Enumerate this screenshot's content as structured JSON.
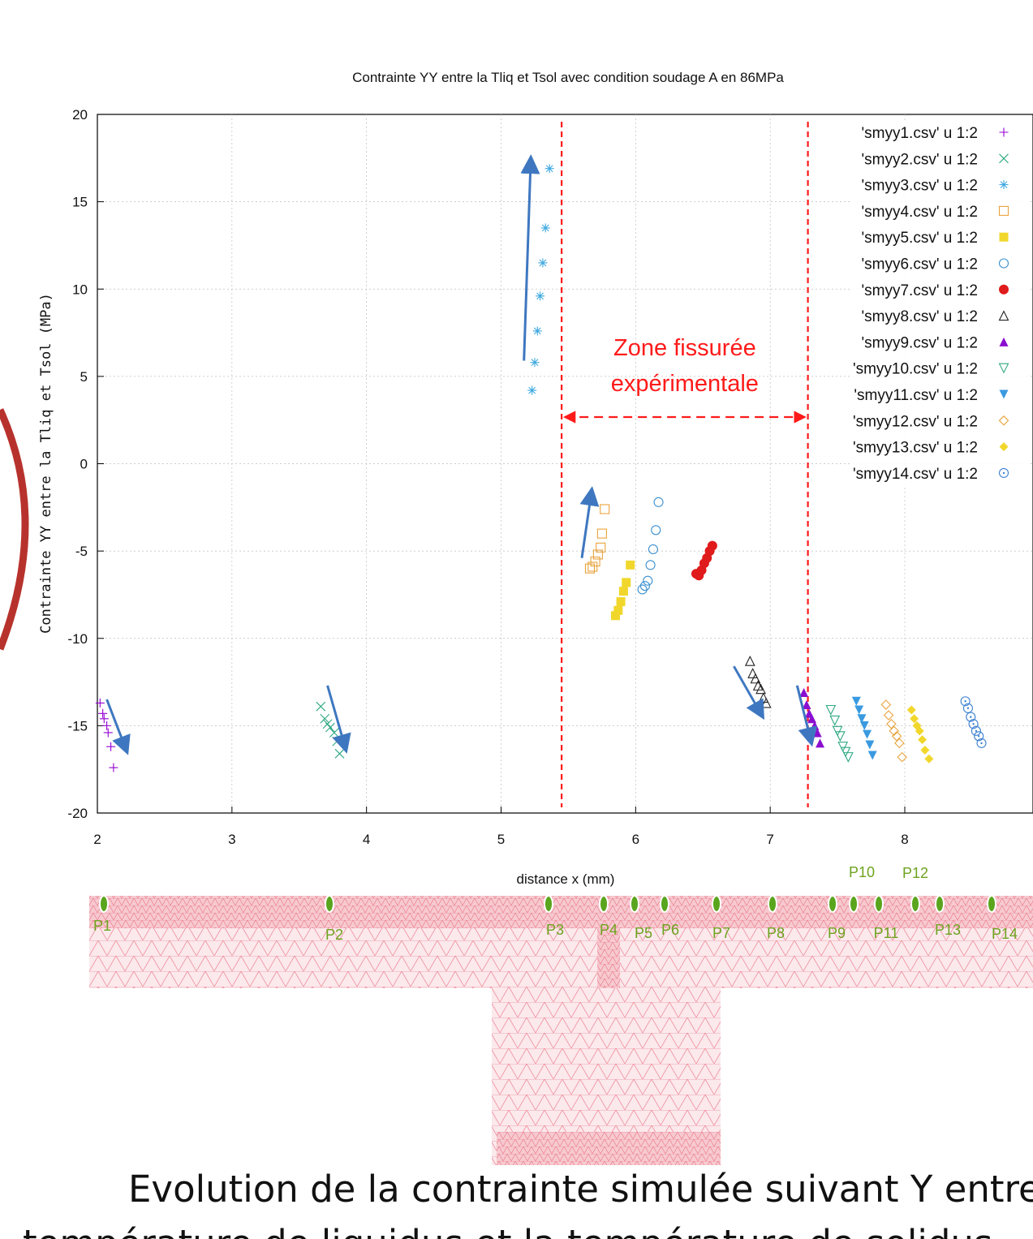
{
  "chart_data": {
    "type": "scatter",
    "title": "Contrainte YY entre la Tliq et Tsol avec condition soudage A en 86MPa",
    "xlabel": "distance x (mm)",
    "ylabel": "Contrainte YY entre la Tliq et Tsol (MPa)",
    "xlim": [
      2,
      8.95
    ],
    "ylim": [
      -20,
      20
    ],
    "xticks": [
      "2",
      "3",
      "4",
      "5",
      "6",
      "7",
      "8"
    ],
    "yticks": [
      "20",
      "15",
      "10",
      "5",
      "0",
      "-5",
      "-10",
      "-15",
      "-20"
    ],
    "grid": true,
    "legend_position": "top-right",
    "series": [
      {
        "name": "'smyy1.csv' u 1:2",
        "marker": "plus",
        "color": "#9400d3",
        "points": [
          [
            2.02,
            -13.7
          ],
          [
            2.04,
            -14.3
          ],
          [
            2.05,
            -14.6
          ],
          [
            2.07,
            -15.0
          ],
          [
            2.08,
            -15.4
          ],
          [
            2.1,
            -16.2
          ],
          [
            2.12,
            -17.4
          ]
        ]
      },
      {
        "name": "'smyy2.csv' u 1:2",
        "marker": "cross",
        "color": "#2fa882",
        "points": [
          [
            3.66,
            -13.9
          ],
          [
            3.69,
            -14.6
          ],
          [
            3.71,
            -14.9
          ],
          [
            3.73,
            -15.1
          ],
          [
            3.76,
            -15.4
          ],
          [
            3.78,
            -15.9
          ],
          [
            3.8,
            -16.6
          ]
        ]
      },
      {
        "name": "'smyy3.csv' u 1:2",
        "marker": "star",
        "color": "#3fa9e0",
        "points": [
          [
            5.23,
            4.2
          ],
          [
            5.25,
            5.8
          ],
          [
            5.27,
            7.6
          ],
          [
            5.29,
            9.6
          ],
          [
            5.31,
            11.5
          ],
          [
            5.33,
            13.5
          ],
          [
            5.36,
            16.9
          ]
        ]
      },
      {
        "name": "'smyy4.csv' u 1:2",
        "marker": "open-square",
        "color": "#e8a33c",
        "points": [
          [
            5.66,
            -6.0
          ],
          [
            5.68,
            -5.9
          ],
          [
            5.7,
            -5.6
          ],
          [
            5.72,
            -5.2
          ],
          [
            5.74,
            -4.8
          ],
          [
            5.75,
            -4.0
          ],
          [
            5.77,
            -2.6
          ]
        ]
      },
      {
        "name": "'smyy5.csv' u 1:2",
        "marker": "filled-square",
        "color": "#f1d72c",
        "points": [
          [
            5.85,
            -8.7
          ],
          [
            5.87,
            -8.4
          ],
          [
            5.89,
            -7.9
          ],
          [
            5.91,
            -7.3
          ],
          [
            5.93,
            -6.8
          ],
          [
            5.96,
            -5.8
          ]
        ]
      },
      {
        "name": "'smyy6.csv' u 1:2",
        "marker": "open-circle",
        "color": "#3a8fd0",
        "points": [
          [
            6.05,
            -7.2
          ],
          [
            6.07,
            -7.0
          ],
          [
            6.09,
            -6.7
          ],
          [
            6.11,
            -5.8
          ],
          [
            6.13,
            -4.9
          ],
          [
            6.15,
            -3.8
          ],
          [
            6.17,
            -2.2
          ]
        ]
      },
      {
        "name": "'smyy7.csv' u 1:2",
        "marker": "filled-circle",
        "color": "#e01b1b",
        "points": [
          [
            6.45,
            -6.3
          ],
          [
            6.47,
            -6.4
          ],
          [
            6.49,
            -6.1
          ],
          [
            6.51,
            -5.7
          ],
          [
            6.53,
            -5.4
          ],
          [
            6.55,
            -5.0
          ],
          [
            6.57,
            -4.7
          ]
        ]
      },
      {
        "name": "'smyy8.csv' u 1:2",
        "marker": "open-triangle",
        "color": "#222222",
        "points": [
          [
            6.85,
            -11.3
          ],
          [
            6.87,
            -12.0
          ],
          [
            6.89,
            -12.3
          ],
          [
            6.91,
            -12.7
          ],
          [
            6.93,
            -12.9
          ],
          [
            6.95,
            -13.4
          ],
          [
            6.97,
            -13.7
          ]
        ]
      },
      {
        "name": "'smyy9.csv' u 1:2",
        "marker": "filled-triangle",
        "color": "#8a0fd0",
        "points": [
          [
            7.25,
            -13.1
          ],
          [
            7.27,
            -13.8
          ],
          [
            7.29,
            -14.3
          ],
          [
            7.31,
            -14.6
          ],
          [
            7.33,
            -15.0
          ],
          [
            7.35,
            -15.4
          ],
          [
            7.37,
            -16.0
          ]
        ]
      },
      {
        "name": "'smyy10.csv' u 1:2",
        "marker": "open-down-triangle",
        "color": "#2fa882",
        "points": [
          [
            7.45,
            -14.1
          ],
          [
            7.48,
            -14.7
          ],
          [
            7.5,
            -15.3
          ],
          [
            7.52,
            -15.6
          ],
          [
            7.54,
            -16.2
          ],
          [
            7.56,
            -16.5
          ],
          [
            7.58,
            -16.8
          ]
        ]
      },
      {
        "name": "'smyy11.csv' u 1:2",
        "marker": "filled-down-triangle",
        "color": "#3a9ae0",
        "points": [
          [
            7.64,
            -13.6
          ],
          [
            7.66,
            -14.1
          ],
          [
            7.68,
            -14.6
          ],
          [
            7.7,
            -15.0
          ],
          [
            7.72,
            -15.5
          ],
          [
            7.74,
            -16.1
          ],
          [
            7.76,
            -16.7
          ]
        ]
      },
      {
        "name": "'smyy12.csv' u 1:2",
        "marker": "open-diamond",
        "color": "#e8a33c",
        "points": [
          [
            7.86,
            -13.8
          ],
          [
            7.88,
            -14.4
          ],
          [
            7.9,
            -14.9
          ],
          [
            7.92,
            -15.3
          ],
          [
            7.94,
            -15.6
          ],
          [
            7.96,
            -16.0
          ],
          [
            7.98,
            -16.8
          ]
        ]
      },
      {
        "name": "'smyy13.csv' u 1:2",
        "marker": "filled-diamond",
        "color": "#f1d72c",
        "points": [
          [
            8.05,
            -14.1
          ],
          [
            8.07,
            -14.6
          ],
          [
            8.09,
            -15.0
          ],
          [
            8.11,
            -15.3
          ],
          [
            8.13,
            -15.8
          ],
          [
            8.15,
            -16.4
          ],
          [
            8.18,
            -16.9
          ]
        ]
      },
      {
        "name": "'smyy14.csv' u 1:2",
        "marker": "dotted-circle",
        "color": "#3a7fd0",
        "points": [
          [
            8.45,
            -13.6
          ],
          [
            8.47,
            -14.0
          ],
          [
            8.49,
            -14.5
          ],
          [
            8.51,
            -14.9
          ],
          [
            8.53,
            -15.3
          ],
          [
            8.55,
            -15.6
          ],
          [
            8.57,
            -16.0
          ]
        ]
      }
    ],
    "arrows": [
      [
        [
          2.07,
          -13.5
        ],
        [
          2.21,
          -16.3
        ]
      ],
      [
        [
          3.71,
          -12.7
        ],
        [
          3.84,
          -16.2
        ]
      ],
      [
        [
          5.17,
          5.9
        ],
        [
          5.22,
          17.3
        ]
      ],
      [
        [
          5.6,
          -5.4
        ],
        [
          5.67,
          -1.7
        ]
      ],
      [
        [
          6.73,
          -11.6
        ],
        [
          6.93,
          -14.3
        ]
      ],
      [
        [
          7.2,
          -12.7
        ],
        [
          7.3,
          -15.8
        ]
      ]
    ],
    "zone_bounds_x": [
      5.45,
      7.28
    ],
    "zone_label_line1": "Zone fissurée",
    "zone_label_line2": "expérimentale",
    "probes": [
      "P1",
      "P2",
      "P3",
      "P4",
      "P5",
      "P6",
      "P7",
      "P8",
      "P9",
      "P10",
      "P11",
      "P12",
      "P13",
      "P14"
    ]
  },
  "caption_line1": "Evolution de la contrainte simulée suivant Y entre la",
  "caption_line2": "température de liquidus et la température de solidus"
}
